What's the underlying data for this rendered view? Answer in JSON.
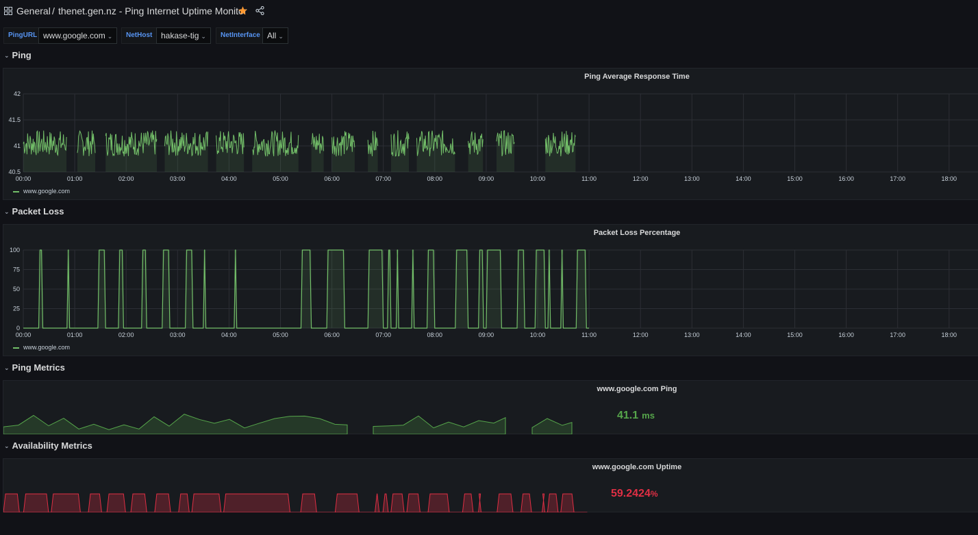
{
  "header": {
    "folder": "General",
    "separator": "/",
    "title": "thenet.gen.nz - Ping Internet Uptime Monitor",
    "icons": [
      "apps-grid-icon",
      "star-icon",
      "share-icon"
    ],
    "star_color": "#ff9830"
  },
  "variables": [
    {
      "label": "PingURL",
      "value": "www.google.com"
    },
    {
      "label": "NetHost",
      "value": "hakase-tig"
    },
    {
      "label": "NetInterface",
      "value": "All"
    }
  ],
  "rows": {
    "ping": "Ping",
    "packet_loss": "Packet Loss",
    "ping_metrics": "Ping Metrics",
    "availability": "Availability Metrics"
  },
  "panels": {
    "ping_avg": {
      "title": "Ping Average Response Time",
      "legend": "www.google.com"
    },
    "packet_loss": {
      "title": "Packet Loss Percentage",
      "legend": "www.google.com"
    },
    "ping_stat": {
      "title": "www.google.com Ping",
      "value": "41.1",
      "unit": "ms",
      "color": "#56a64b"
    },
    "uptime_stat": {
      "title": "www.google.com Uptime",
      "value": "59.2424",
      "unit": "%",
      "color": "#e02f44"
    }
  },
  "chart_data": [
    {
      "type": "line",
      "title": "Ping Average Response Time",
      "xlabel": "",
      "ylabel": "",
      "x_ticks": [
        "00:00",
        "01:00",
        "02:00",
        "03:00",
        "04:00",
        "05:00",
        "06:00",
        "07:00",
        "08:00",
        "09:00",
        "10:00",
        "11:00",
        "12:00",
        "13:00",
        "14:00",
        "15:00",
        "16:00",
        "17:00",
        "18:00"
      ],
      "y_ticks": [
        "40.5",
        "41",
        "41.5",
        "42"
      ],
      "ylim": [
        40.5,
        42
      ],
      "grid": true,
      "legend_position": "bottom-left",
      "series": [
        {
          "name": "www.google.com",
          "color": "#73bf69"
        }
      ],
      "active_intervals_hours": [
        [
          0.0,
          0.85
        ],
        [
          1.05,
          1.4
        ],
        [
          1.6,
          2.6
        ],
        [
          2.75,
          3.6
        ],
        [
          3.75,
          4.3
        ],
        [
          4.45,
          5.35
        ],
        [
          5.6,
          5.85
        ],
        [
          6.0,
          6.45
        ],
        [
          6.7,
          6.9
        ],
        [
          7.15,
          7.5
        ],
        [
          7.65,
          8.4
        ],
        [
          8.65,
          8.95
        ],
        [
          9.2,
          9.55
        ],
        [
          10.15,
          10.75
        ]
      ],
      "values_range_ms": [
        40.6,
        41.55
      ]
    },
    {
      "type": "line",
      "title": "Packet Loss Percentage",
      "xlabel": "",
      "ylabel": "",
      "x_ticks": [
        "00:00",
        "01:00",
        "02:00",
        "03:00",
        "04:00",
        "05:00",
        "06:00",
        "07:00",
        "08:00",
        "09:00",
        "10:00",
        "11:00",
        "12:00",
        "13:00",
        "14:00",
        "15:00",
        "16:00",
        "17:00",
        "18:00"
      ],
      "y_ticks": [
        "0",
        "25",
        "50",
        "75",
        "100"
      ],
      "ylim": [
        0,
        100
      ],
      "grid": true,
      "legend_position": "bottom-left",
      "series": [
        {
          "name": "www.google.com",
          "color": "#73bf69"
        }
      ],
      "loss_100_intervals_hours": [
        [
          0.3,
          0.38
        ],
        [
          0.85,
          0.9
        ],
        [
          1.45,
          1.6
        ],
        [
          1.85,
          1.95
        ],
        [
          2.3,
          2.4
        ],
        [
          2.7,
          2.85
        ],
        [
          3.15,
          3.3
        ],
        [
          3.5,
          3.55
        ],
        [
          4.1,
          4.15
        ],
        [
          5.4,
          5.6
        ],
        [
          5.9,
          6.25
        ],
        [
          6.7,
          7.0
        ],
        [
          7.08,
          7.15
        ],
        [
          7.25,
          7.3
        ],
        [
          7.55,
          7.6
        ],
        [
          7.85,
          8.0
        ],
        [
          8.4,
          8.65
        ],
        [
          8.85,
          8.95
        ],
        [
          9.0,
          9.3
        ],
        [
          9.6,
          9.75
        ],
        [
          9.95,
          10.15
        ],
        [
          10.2,
          10.25
        ],
        [
          10.45,
          10.5
        ],
        [
          10.75,
          10.95
        ]
      ]
    }
  ]
}
